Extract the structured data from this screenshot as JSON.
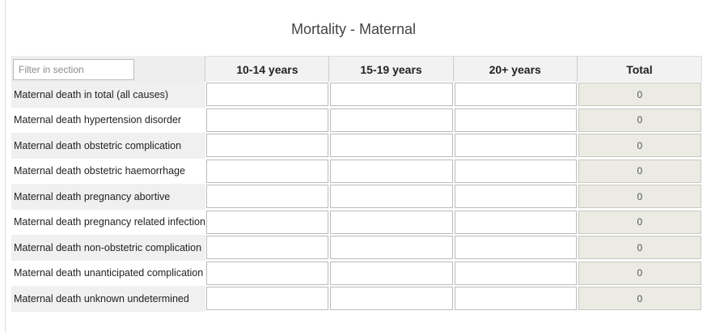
{
  "section": {
    "title": "Mortality - Maternal"
  },
  "filter": {
    "placeholder": "Filter in section",
    "value": ""
  },
  "columns": [
    "10-14 years",
    "15-19 years",
    "20+ years",
    "Total"
  ],
  "rows": [
    {
      "label": "Maternal death in total (all causes)",
      "total": "0"
    },
    {
      "label": "Maternal death hypertension disorder",
      "total": "0"
    },
    {
      "label": "Maternal death obstetric complication",
      "total": "0"
    },
    {
      "label": "Maternal death obstetric haemorrhage",
      "total": "0"
    },
    {
      "label": "Maternal death pregnancy abortive",
      "total": "0"
    },
    {
      "label": "Maternal death pregnancy related infection",
      "total": "0"
    },
    {
      "label": "Maternal death non-obstetric complication",
      "total": "0"
    },
    {
      "label": "Maternal death unanticipated complication",
      "total": "0"
    },
    {
      "label": "Maternal death unknown undetermined",
      "total": "0"
    }
  ],
  "colors": {
    "label_stripe": "#f0f0f0",
    "header_bg": "#f2f2f2",
    "total_bg": "#ebebe4",
    "border": "#bbbbbb"
  }
}
